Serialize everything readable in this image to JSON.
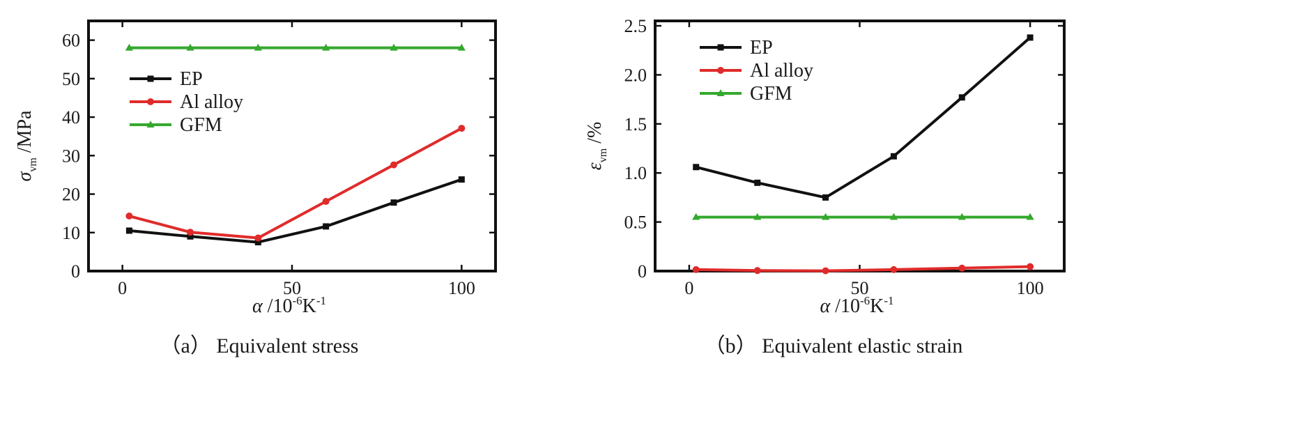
{
  "chart_data": [
    {
      "type": "line",
      "caption": "（a）  Equivalent stress",
      "xlabel": {
        "symbol": "α",
        "unit": "/10",
        "exponent": "-6",
        "unit_tail": "K",
        "tail_exponent": "-1"
      },
      "ylabel": {
        "symbol": "σ",
        "subscript": "vm",
        "unit": "/MPa"
      },
      "xlim": [
        -10,
        110
      ],
      "ylim": [
        0,
        65
      ],
      "xticks": [
        0,
        50,
        100
      ],
      "yticks": [
        0,
        10,
        20,
        30,
        40,
        50,
        60
      ],
      "x": [
        2,
        20,
        40,
        60,
        80,
        100
      ],
      "legend_position": "upper-left",
      "series": [
        {
          "name": "EP",
          "color": "#111111",
          "marker": "square",
          "values": [
            10.5,
            9.0,
            7.5,
            11.6,
            17.8,
            23.8
          ]
        },
        {
          "name": "Al alloy",
          "color": "#e02b2b",
          "marker": "circle",
          "values": [
            14.3,
            10.1,
            8.6,
            18.1,
            27.6,
            37.1
          ]
        },
        {
          "name": "GFM",
          "color": "#35a82e",
          "marker": "triangle",
          "values": [
            58.0,
            58.0,
            58.0,
            58.0,
            58.0,
            58.0
          ]
        }
      ]
    },
    {
      "type": "line",
      "caption": "（b）  Equivalent elastic strain",
      "xlabel": {
        "symbol": "α",
        "unit": "/10",
        "exponent": "-6",
        "unit_tail": "K",
        "tail_exponent": "-1"
      },
      "ylabel": {
        "symbol": "ε",
        "subscript": "vm",
        "unit": "/%"
      },
      "xlim": [
        -10,
        110
      ],
      "ylim": [
        0,
        2.55
      ],
      "xticks": [
        0,
        50,
        100
      ],
      "yticks": [
        0,
        0.5,
        1.0,
        1.5,
        2.0,
        2.5
      ],
      "ytick_labels": [
        "0",
        "0.5",
        "1.0",
        "1.5",
        "2.0",
        "2.5"
      ],
      "x": [
        2,
        20,
        40,
        60,
        80,
        100
      ],
      "legend_position": "upper-left",
      "series": [
        {
          "name": "EP",
          "color": "#111111",
          "marker": "square",
          "values": [
            1.06,
            0.9,
            0.75,
            1.17,
            1.77,
            2.38
          ]
        },
        {
          "name": "Al alloy",
          "color": "#e02b2b",
          "marker": "circle",
          "values": [
            0.015,
            0.005,
            0.003,
            0.015,
            0.03,
            0.045
          ]
        },
        {
          "name": "GFM",
          "color": "#35a82e",
          "marker": "triangle",
          "values": [
            0.55,
            0.55,
            0.55,
            0.55,
            0.55,
            0.55
          ]
        }
      ]
    }
  ]
}
